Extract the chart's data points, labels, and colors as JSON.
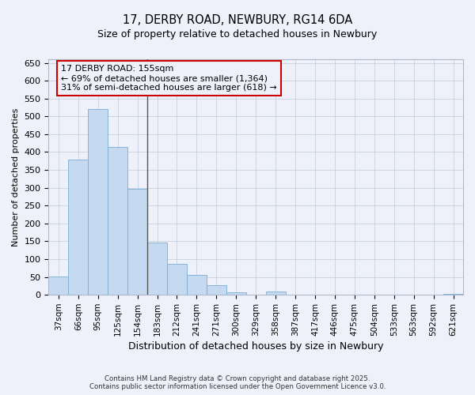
{
  "title": "17, DERBY ROAD, NEWBURY, RG14 6DA",
  "subtitle": "Size of property relative to detached houses in Newbury",
  "xlabel": "Distribution of detached houses by size in Newbury",
  "ylabel": "Number of detached properties",
  "footer_line1": "Contains HM Land Registry data © Crown copyright and database right 2025.",
  "footer_line2": "Contains public sector information licensed under the Open Government Licence v3.0.",
  "annotation_title": "17 DERBY ROAD: 155sqm",
  "annotation_line1": "← 69% of detached houses are smaller (1,364)",
  "annotation_line2": "31% of semi-detached houses are larger (618) →",
  "bar_color": "#c5d9f0",
  "bar_edge_color": "#7aadd4",
  "vline_color": "#555555",
  "annotation_box_color": "#cc0000",
  "background_color": "#eef1fa",
  "grid_color": "#c8d0e0",
  "categories": [
    "37sqm",
    "66sqm",
    "95sqm",
    "125sqm",
    "154sqm",
    "183sqm",
    "212sqm",
    "241sqm",
    "271sqm",
    "300sqm",
    "329sqm",
    "358sqm",
    "387sqm",
    "417sqm",
    "446sqm",
    "475sqm",
    "504sqm",
    "533sqm",
    "563sqm",
    "592sqm",
    "621sqm"
  ],
  "values": [
    52,
    378,
    521,
    414,
    296,
    147,
    86,
    56,
    28,
    8,
    0,
    10,
    0,
    0,
    0,
    0,
    0,
    0,
    0,
    0,
    2
  ],
  "ylim": [
    0,
    660
  ],
  "yticks": [
    0,
    50,
    100,
    150,
    200,
    250,
    300,
    350,
    400,
    450,
    500,
    550,
    600,
    650
  ],
  "vline_x": 4.5,
  "figwidth": 6.0,
  "figheight": 5.0,
  "dpi": 100
}
